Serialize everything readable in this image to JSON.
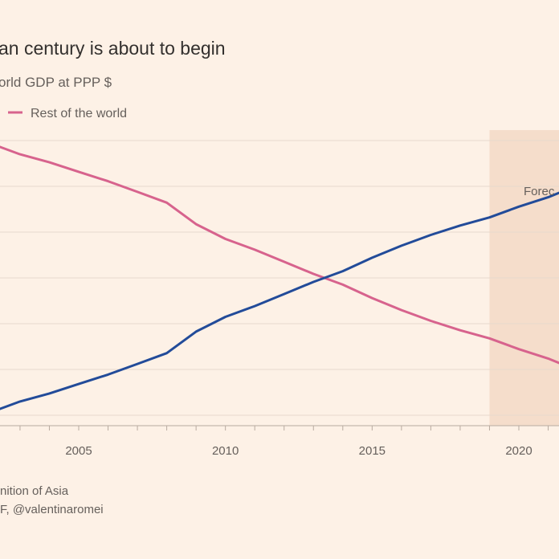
{
  "chart_data": {
    "type": "line",
    "title": "an century is about to begin",
    "subtitle": "orld GDP at PPP $",
    "x": [
      2002,
      2003,
      2004,
      2005,
      2006,
      2007,
      2008,
      2009,
      2010,
      2011,
      2012,
      2013,
      2014,
      2015,
      2016,
      2017,
      2018,
      2019,
      2020,
      2021,
      2022
    ],
    "series": [
      {
        "name": "Rest of the world",
        "color": "#d7638d",
        "values": [
          60.0,
          59.2,
          58.6,
          57.9,
          57.2,
          56.4,
          55.6,
          54.0,
          52.9,
          52.1,
          51.2,
          50.3,
          49.5,
          48.5,
          47.6,
          46.8,
          46.1,
          45.5,
          44.7,
          44.0,
          43.1
        ]
      },
      {
        "name": "",
        "color": "#224b99",
        "values": [
          40.0,
          40.8,
          41.4,
          42.1,
          42.8,
          43.6,
          44.4,
          46.0,
          47.1,
          47.9,
          48.8,
          49.7,
          50.5,
          51.5,
          52.4,
          53.2,
          53.9,
          54.5,
          55.3,
          56.0,
          56.9
        ]
      }
    ],
    "xticks": [
      "2005",
      "2010",
      "2015",
      "2020"
    ],
    "xlim": [
      2002,
      2022
    ],
    "ylim": [
      39,
      61
    ],
    "forecast_start": 2019,
    "forecast_label": "Forec",
    "grid": true,
    "legend_position": "top"
  },
  "footer": {
    "note": "nition of Asia",
    "source": "F, @valentinaromei"
  }
}
